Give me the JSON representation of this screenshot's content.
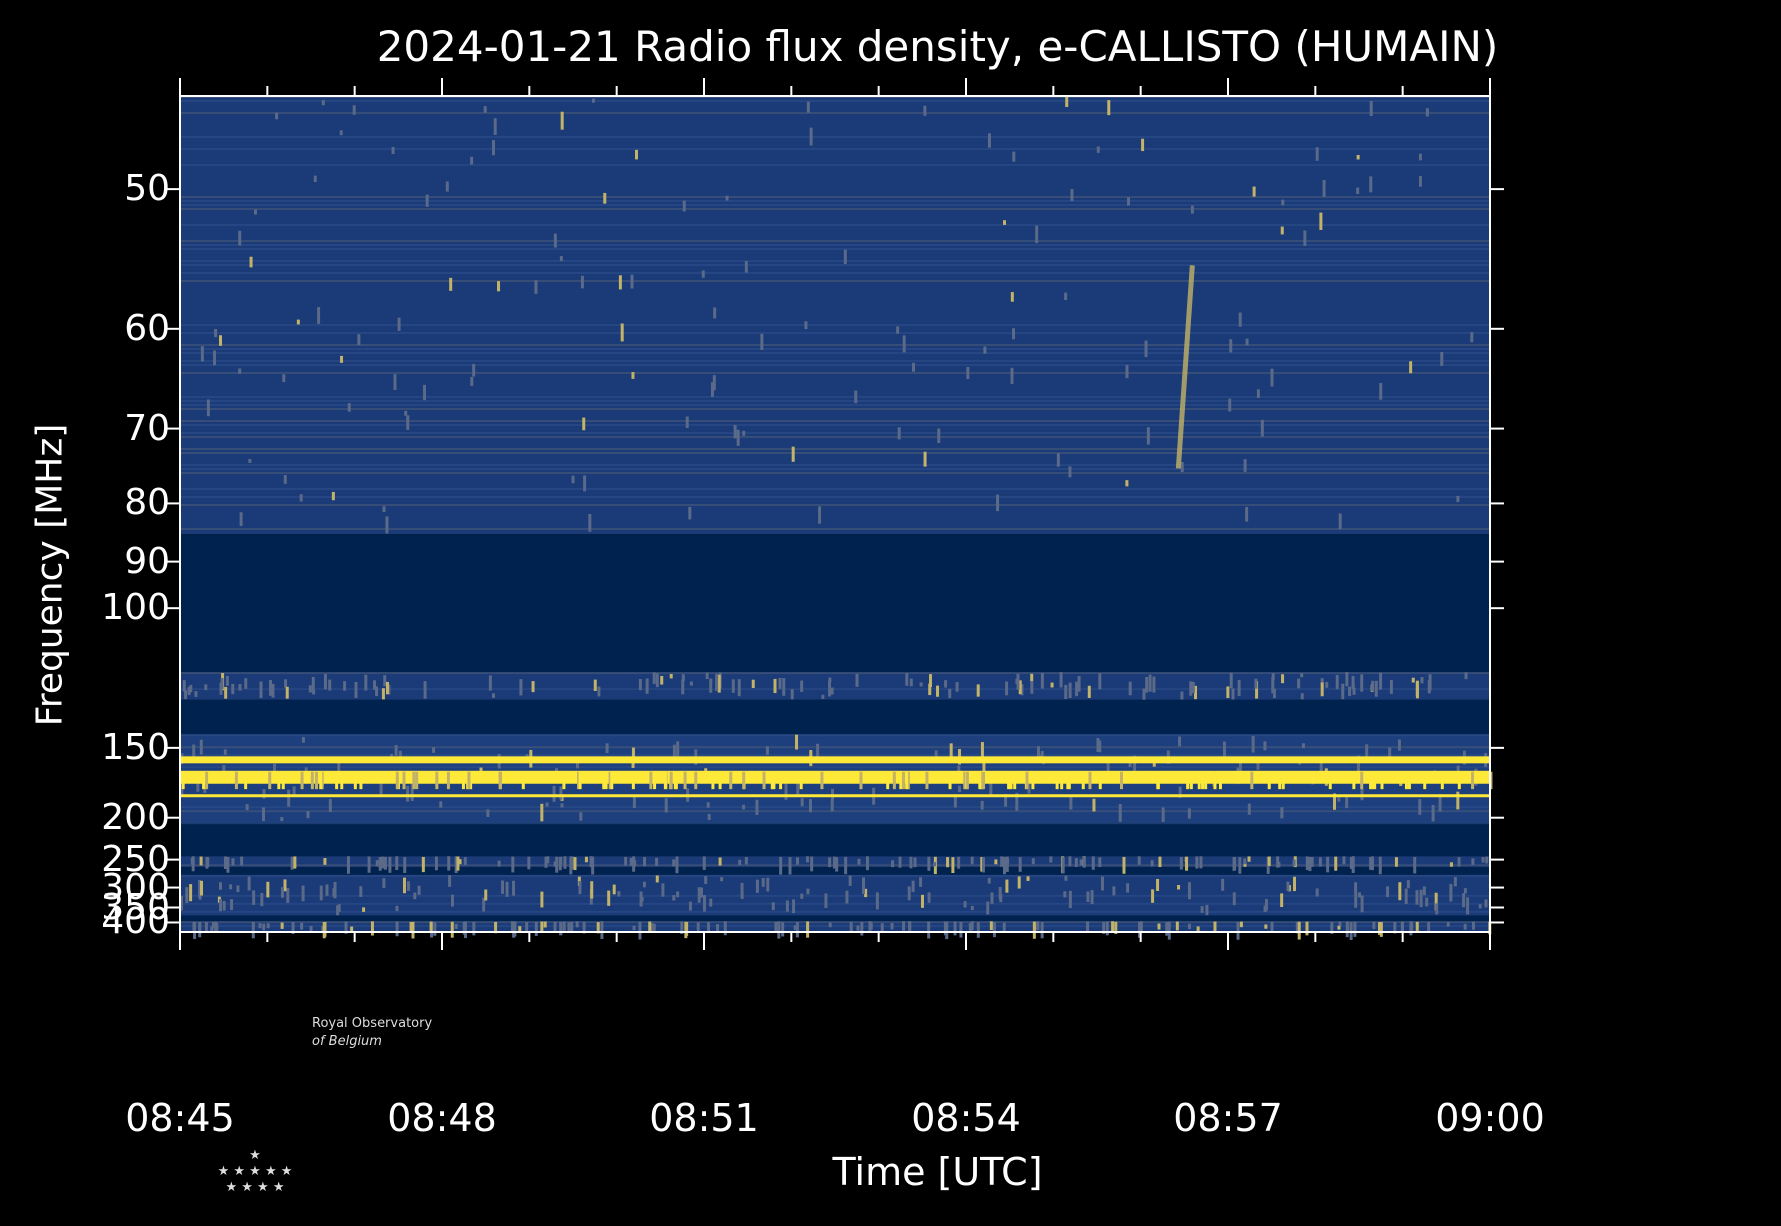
{
  "chart_data": {
    "type": "heatmap",
    "title": "2024-01-21 Radio flux density, e-CALLISTO (HUMAIN)",
    "xlabel": "Time [UTC]",
    "ylabel": "Frequency [MHz]",
    "x_tick_labels": [
      "08:45",
      "08:48",
      "08:51",
      "08:54",
      "08:57",
      "09:00"
    ],
    "y_tick_labels": [
      "50",
      "60",
      "70",
      "80",
      "90",
      "100",
      "150",
      "200",
      "250",
      "300",
      "350",
      "400"
    ],
    "y_scale": "reciprocal (1/f)",
    "x_range": [
      "08:45",
      "09:00"
    ],
    "y_range_mhz": [
      45,
      440
    ],
    "colormap": [
      "#00224e",
      "#575d6d",
      "#c3b369",
      "#fee838"
    ],
    "frequency_bands_mhz": [
      {
        "from": 45,
        "to": 85,
        "level": "background-noise"
      },
      {
        "from": 85,
        "to": 118,
        "level": "masked"
      },
      {
        "from": 118,
        "to": 128,
        "level": "background-noise"
      },
      {
        "from": 128,
        "to": 143,
        "level": "masked"
      },
      {
        "from": 143,
        "to": 205,
        "level": "interference"
      },
      {
        "from": 205,
        "to": 245,
        "level": "masked"
      },
      {
        "from": 245,
        "to": 262,
        "level": "background-noise"
      },
      {
        "from": 262,
        "to": 275,
        "level": "masked"
      },
      {
        "from": 275,
        "to": 375,
        "level": "background-noise"
      },
      {
        "from": 375,
        "to": 395,
        "level": "masked"
      },
      {
        "from": 395,
        "to": 440,
        "level": "background-noise"
      }
    ],
    "strong_lines_mhz": [
      157,
      166,
      170,
      183
    ],
    "notable_event": {
      "time": "08:56:30",
      "freq_range_mhz": [
        55,
        75
      ],
      "type": "drifting burst"
    }
  },
  "logo": {
    "line1": "Royal Observatory",
    "line2": "of Belgium"
  }
}
